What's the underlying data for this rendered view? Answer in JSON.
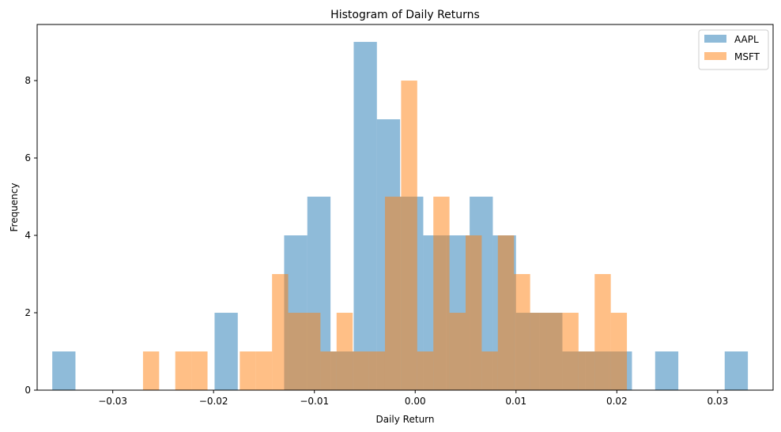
{
  "chart_data": {
    "type": "bar",
    "title": "Histogram of Daily Returns",
    "xlabel": "Daily Return",
    "ylabel": "Frequency",
    "xlim": [
      -0.0375,
      0.0355
    ],
    "ylim": [
      0,
      9.45
    ],
    "xticks": [
      -0.03,
      -0.02,
      -0.01,
      0.0,
      0.01,
      0.02,
      0.03
    ],
    "xtick_labels": [
      "−0.03",
      "−0.02",
      "−0.01",
      "0.00",
      "0.01",
      "0.02",
      "0.03"
    ],
    "yticks": [
      0,
      2,
      4,
      6,
      8
    ],
    "ytick_labels": [
      "0",
      "2",
      "4",
      "6",
      "8"
    ],
    "grid": false,
    "legend": "top-right",
    "series": [
      {
        "name": "AAPL",
        "color": "#1f77b4",
        "alpha": 0.5,
        "bins": [
          [
            -0.036,
            -0.0337,
            1
          ],
          [
            -0.0337,
            -0.0314,
            0
          ],
          [
            -0.0314,
            -0.0291,
            0
          ],
          [
            -0.0291,
            -0.0268,
            0
          ],
          [
            -0.0268,
            -0.0245,
            0
          ],
          [
            -0.0245,
            -0.0222,
            0
          ],
          [
            -0.0222,
            -0.0199,
            0
          ],
          [
            -0.0199,
            -0.0176,
            2
          ],
          [
            -0.0176,
            -0.0153,
            0
          ],
          [
            -0.0153,
            -0.013,
            0
          ],
          [
            -0.013,
            -0.0107,
            4
          ],
          [
            -0.0107,
            -0.0084,
            5
          ],
          [
            -0.0084,
            -0.0061,
            1
          ],
          [
            -0.0061,
            -0.0038,
            9
          ],
          [
            -0.0038,
            -0.0015,
            7
          ],
          [
            -0.0015,
            0.0008,
            5
          ],
          [
            0.0008,
            0.0031,
            4
          ],
          [
            0.0031,
            0.0054,
            4
          ],
          [
            0.0054,
            0.0077,
            5
          ],
          [
            0.0077,
            0.01,
            4
          ],
          [
            0.01,
            0.0123,
            2
          ],
          [
            0.0123,
            0.0146,
            2
          ],
          [
            0.0146,
            0.0169,
            1
          ],
          [
            0.0169,
            0.0192,
            1
          ],
          [
            0.0192,
            0.0215,
            1
          ],
          [
            0.0215,
            0.0238,
            0
          ],
          [
            0.0238,
            0.0261,
            1
          ],
          [
            0.0261,
            0.0284,
            0
          ],
          [
            0.0284,
            0.0307,
            0
          ],
          [
            0.0307,
            0.033,
            1
          ]
        ]
      },
      {
        "name": "MSFT",
        "color": "#ff7f0e",
        "alpha": 0.5,
        "bins": [
          [
            -0.027,
            -0.0254,
            1
          ],
          [
            -0.0254,
            -0.0238,
            0
          ],
          [
            -0.0238,
            -0.0222,
            1
          ],
          [
            -0.0222,
            -0.0206,
            1
          ],
          [
            -0.0206,
            -0.019,
            0
          ],
          [
            -0.019,
            -0.0174,
            0
          ],
          [
            -0.0174,
            -0.0158,
            1
          ],
          [
            -0.0158,
            -0.0142,
            1
          ],
          [
            -0.0142,
            -0.0126,
            3
          ],
          [
            -0.0126,
            -0.011,
            2
          ],
          [
            -0.011,
            -0.0094,
            2
          ],
          [
            -0.0094,
            -0.0078,
            1
          ],
          [
            -0.0078,
            -0.0062,
            2
          ],
          [
            -0.0062,
            -0.0046,
            1
          ],
          [
            -0.0046,
            -0.003,
            1
          ],
          [
            -0.003,
            -0.0014,
            5
          ],
          [
            -0.0014,
            0.0002,
            8
          ],
          [
            0.0002,
            0.0018,
            1
          ],
          [
            0.0018,
            0.0034,
            5
          ],
          [
            0.0034,
            0.005,
            2
          ],
          [
            0.005,
            0.0066,
            4
          ],
          [
            0.0066,
            0.0082,
            1
          ],
          [
            0.0082,
            0.0098,
            4
          ],
          [
            0.0098,
            0.0114,
            3
          ],
          [
            0.0114,
            0.013,
            2
          ],
          [
            0.013,
            0.0146,
            2
          ],
          [
            0.0146,
            0.0162,
            2
          ],
          [
            0.0162,
            0.0178,
            1
          ],
          [
            0.0178,
            0.0194,
            3
          ],
          [
            0.0194,
            0.021,
            2
          ]
        ]
      }
    ]
  }
}
